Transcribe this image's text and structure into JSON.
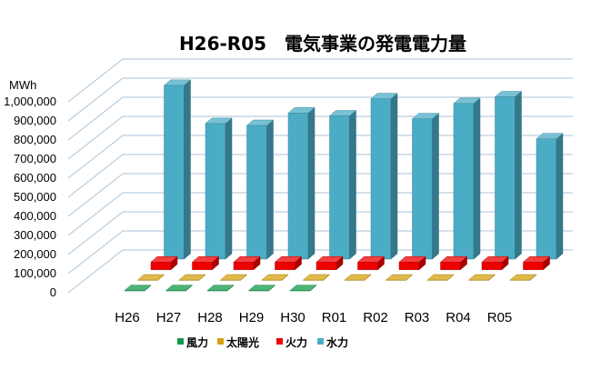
{
  "chart_data": {
    "type": "bar",
    "style": "3d",
    "title": "H26-R05　電気事業の発電電力量",
    "xlabel": "",
    "ylabel": "MWh",
    "ylim": [
      0,
      1000000
    ],
    "y_tick_labels": [
      "0",
      "100,000",
      "200,000",
      "300,000",
      "400,000",
      "500,000",
      "600,000",
      "700,000",
      "800,000",
      "900,000",
      "1,000,000"
    ],
    "grid": true,
    "legend_position": "bottom",
    "categories": [
      "H26",
      "H27",
      "H28",
      "H29",
      "H30",
      "R01",
      "R02",
      "R03",
      "R04",
      "R05"
    ],
    "series": [
      {
        "name": "風力",
        "color": "#13994a",
        "values": [
          1000,
          1000,
          1000,
          1000,
          1000,
          null,
          null,
          null,
          null,
          null
        ]
      },
      {
        "name": "太陽光",
        "color": "#d4a10f",
        "values": [
          1000,
          1000,
          1000,
          1000,
          1000,
          1000,
          1000,
          1000,
          1000,
          1000
        ]
      },
      {
        "name": "火力",
        "color": "#ee0000",
        "values": [
          40000,
          40000,
          40000,
          40000,
          40000,
          40000,
          40000,
          40000,
          40000,
          40000
        ]
      },
      {
        "name": "水力",
        "color": "#4bacc6",
        "values": [
          910000,
          710000,
          700000,
          765000,
          750000,
          840000,
          735000,
          815000,
          850000,
          630000
        ]
      }
    ]
  }
}
